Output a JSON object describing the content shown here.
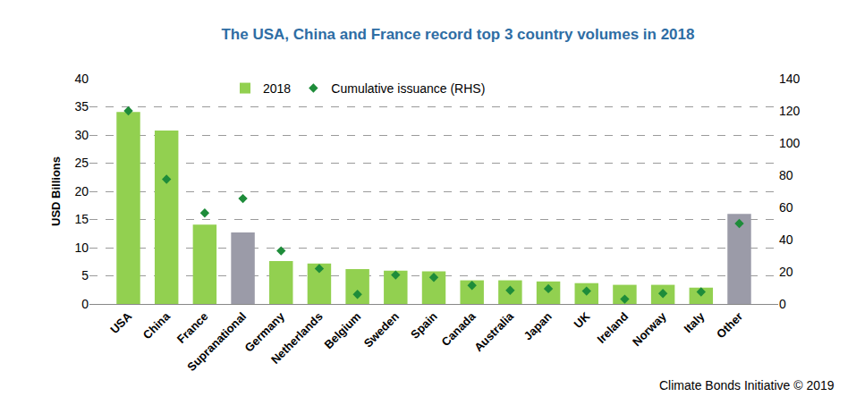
{
  "chart_data": {
    "type": "bar",
    "title": "The USA, China and France record top 3 country volumes in 2018",
    "y_label": "USD Billions",
    "annotation": "Climate Bonds Initiative © 2019",
    "categories": [
      "USA",
      "China",
      "France",
      "Supranational",
      "Germany",
      "Netherlands",
      "Belgium",
      "Sweden",
      "Spain",
      "Canada",
      "Australia",
      "Japan",
      "UK",
      "Ireland",
      "Norway",
      "Italy",
      "Other"
    ],
    "series": [
      {
        "name": "2018",
        "type": "bar",
        "colors": [
          "#92D050",
          "#92D050",
          "#92D050",
          "#9B9BA8",
          "#92D050",
          "#92D050",
          "#92D050",
          "#92D050",
          "#92D050",
          "#92D050",
          "#92D050",
          "#92D050",
          "#92D050",
          "#92D050",
          "#92D050",
          "#92D050",
          "#9B9BA8"
        ],
        "values": [
          34.1,
          30.8,
          14.1,
          12.7,
          7.6,
          7.2,
          6.2,
          5.9,
          5.8,
          4.2,
          4.2,
          4.0,
          3.7,
          3.4,
          3.4,
          2.9,
          16.0
        ]
      },
      {
        "name": "Cumulative issuance (RHS)",
        "type": "scatter",
        "axis": "y2",
        "marker": "diamond",
        "line_style": "none",
        "color": "#1E8C3A",
        "values": [
          120,
          77.5,
          56.5,
          65.5,
          33,
          22,
          6,
          18,
          16.5,
          11.5,
          8.5,
          9.5,
          8,
          3,
          6.5,
          7.5,
          50
        ]
      }
    ],
    "ylim": [
      0,
      40
    ],
    "yticks": [
      0,
      5,
      10,
      15,
      20,
      25,
      30,
      35,
      40
    ],
    "y2lim": [
      0,
      140
    ],
    "y2ticks": [
      0,
      20,
      40,
      60,
      80,
      100,
      120,
      140
    ],
    "grid": true,
    "legend": "top"
  }
}
